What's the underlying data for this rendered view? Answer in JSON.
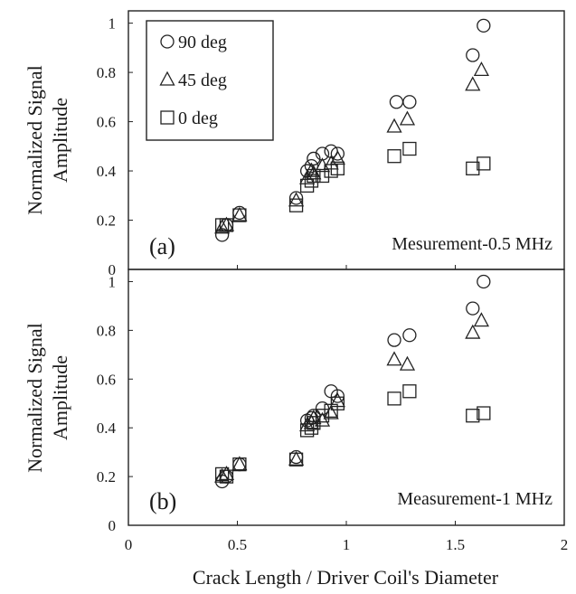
{
  "chart_data": {
    "type": "scatter",
    "xlabel": "Crack Length / Driver Coil's Diameter",
    "xlim": [
      0,
      2
    ],
    "x_ticks": [
      "0",
      "0.5",
      "1",
      "1.5",
      "2"
    ],
    "legend": {
      "placement": "top-left",
      "entries": [
        {
          "label": "90 deg",
          "marker": "circle"
        },
        {
          "label": "45 deg",
          "marker": "triangle"
        },
        {
          "label": "0 deg",
          "marker": "square"
        }
      ]
    },
    "panels": [
      {
        "id": "a",
        "panel_label": "(a)",
        "caption": "Mesurement-0.5 MHz",
        "ylabel_line1": "Normalized Signal",
        "ylabel_line2": "Amplitude",
        "ylim": [
          0,
          1.05
        ],
        "y_ticks": [
          "0",
          "0.2",
          "0.4",
          "0.6",
          "0.8",
          "1"
        ],
        "series": [
          {
            "marker": "circle",
            "x": [
              0.43,
              0.45,
              0.51,
              0.77,
              0.82,
              0.84,
              0.85,
              0.89,
              0.93,
              0.96,
              1.23,
              1.29,
              1.58,
              1.63
            ],
            "y": [
              0.14,
              0.18,
              0.23,
              0.29,
              0.4,
              0.42,
              0.45,
              0.47,
              0.48,
              0.47,
              0.68,
              0.68,
              0.87,
              0.99
            ]
          },
          {
            "marker": "triangle",
            "x": [
              0.43,
              0.45,
              0.51,
              0.77,
              0.82,
              0.84,
              0.85,
              0.89,
              0.93,
              0.96,
              1.22,
              1.28,
              1.58,
              1.62
            ],
            "y": [
              0.17,
              0.18,
              0.22,
              0.28,
              0.37,
              0.4,
              0.39,
              0.42,
              0.43,
              0.45,
              0.58,
              0.61,
              0.75,
              0.81
            ]
          },
          {
            "marker": "square",
            "x": [
              0.43,
              0.45,
              0.51,
              0.77,
              0.82,
              0.84,
              0.85,
              0.89,
              0.93,
              0.96,
              1.22,
              1.29,
              1.58,
              1.63
            ],
            "y": [
              0.18,
              0.18,
              0.22,
              0.26,
              0.34,
              0.36,
              0.38,
              0.38,
              0.4,
              0.41,
              0.46,
              0.49,
              0.41,
              0.43
            ]
          }
        ]
      },
      {
        "id": "b",
        "panel_label": "(b)",
        "caption": "Measurement-1 MHz",
        "ylabel_line1": "Normalized Signal",
        "ylabel_line2": "Amplitude",
        "ylim": [
          0,
          1.05
        ],
        "y_ticks": [
          "0",
          "0.2",
          "0.4",
          "0.6",
          "0.8",
          "1"
        ],
        "series": [
          {
            "marker": "circle",
            "x": [
              0.43,
              0.45,
              0.51,
              0.77,
              0.82,
              0.84,
              0.85,
              0.89,
              0.93,
              0.96,
              1.22,
              1.29,
              1.58,
              1.63
            ],
            "y": [
              0.18,
              0.2,
              0.25,
              0.28,
              0.43,
              0.44,
              0.45,
              0.48,
              0.55,
              0.53,
              0.76,
              0.78,
              0.89,
              1.0
            ]
          },
          {
            "marker": "triangle",
            "x": [
              0.43,
              0.45,
              0.51,
              0.77,
              0.82,
              0.84,
              0.85,
              0.89,
              0.93,
              0.96,
              1.22,
              1.28,
              1.58,
              1.62
            ],
            "y": [
              0.2,
              0.21,
              0.25,
              0.27,
              0.41,
              0.42,
              0.44,
              0.43,
              0.46,
              0.51,
              0.68,
              0.66,
              0.79,
              0.84
            ]
          },
          {
            "marker": "square",
            "x": [
              0.43,
              0.45,
              0.51,
              0.77,
              0.82,
              0.84,
              0.85,
              0.89,
              0.93,
              0.96,
              1.22,
              1.29,
              1.58,
              1.63
            ],
            "y": [
              0.21,
              0.2,
              0.25,
              0.27,
              0.39,
              0.4,
              0.42,
              0.45,
              0.47,
              0.5,
              0.52,
              0.55,
              0.45,
              0.46
            ]
          }
        ]
      }
    ]
  }
}
